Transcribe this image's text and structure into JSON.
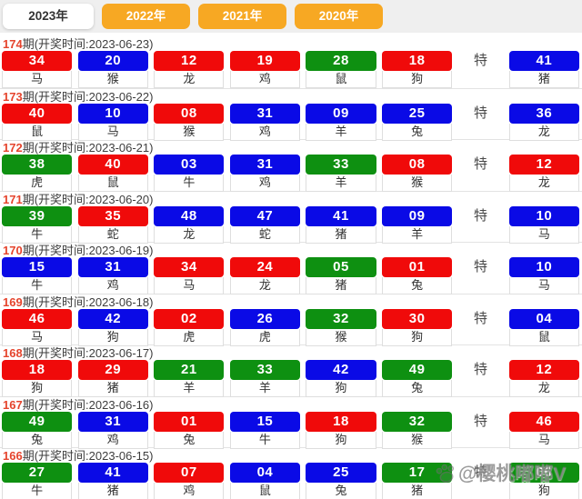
{
  "tabs": [
    {
      "label": "2023年",
      "active": true
    },
    {
      "label": "2022年",
      "active": false
    },
    {
      "label": "2021年",
      "active": false
    },
    {
      "label": "2020年",
      "active": false
    }
  ],
  "special_label": "特",
  "colors": {
    "red": "#f00a0a",
    "blue": "#0a0ae6",
    "green": "#0e9011",
    "tab_orange": "#f7a823",
    "period_red": "#e5442d",
    "header_text": "#3d3d3d",
    "cell_border": "#dedede",
    "tabbar_bg": "#efefef",
    "separator": "#e3e3e3"
  },
  "rows": [
    {
      "period": "174",
      "info": "期(开奖时间:2023-06-23)",
      "balls": [
        {
          "num": "34",
          "color": "red",
          "zodiac": "马"
        },
        {
          "num": "20",
          "color": "blue",
          "zodiac": "猴"
        },
        {
          "num": "12",
          "color": "red",
          "zodiac": "龙"
        },
        {
          "num": "19",
          "color": "red",
          "zodiac": "鸡"
        },
        {
          "num": "28",
          "color": "green",
          "zodiac": "鼠"
        },
        {
          "num": "18",
          "color": "red",
          "zodiac": "狗"
        }
      ],
      "special": {
        "num": "41",
        "color": "blue",
        "zodiac": "猪"
      }
    },
    {
      "period": "173",
      "info": "期(开奖时间:2023-06-22)",
      "balls": [
        {
          "num": "40",
          "color": "red",
          "zodiac": "鼠"
        },
        {
          "num": "10",
          "color": "blue",
          "zodiac": "马"
        },
        {
          "num": "08",
          "color": "red",
          "zodiac": "猴"
        },
        {
          "num": "31",
          "color": "blue",
          "zodiac": "鸡"
        },
        {
          "num": "09",
          "color": "blue",
          "zodiac": "羊"
        },
        {
          "num": "25",
          "color": "blue",
          "zodiac": "兔"
        }
      ],
      "special": {
        "num": "36",
        "color": "blue",
        "zodiac": "龙"
      }
    },
    {
      "period": "172",
      "info": "期(开奖时间:2023-06-21)",
      "balls": [
        {
          "num": "38",
          "color": "green",
          "zodiac": "虎"
        },
        {
          "num": "40",
          "color": "red",
          "zodiac": "鼠"
        },
        {
          "num": "03",
          "color": "blue",
          "zodiac": "牛"
        },
        {
          "num": "31",
          "color": "blue",
          "zodiac": "鸡"
        },
        {
          "num": "33",
          "color": "green",
          "zodiac": "羊"
        },
        {
          "num": "08",
          "color": "red",
          "zodiac": "猴"
        }
      ],
      "special": {
        "num": "12",
        "color": "red",
        "zodiac": "龙"
      }
    },
    {
      "period": "171",
      "info": "期(开奖时间:2023-06-20)",
      "balls": [
        {
          "num": "39",
          "color": "green",
          "zodiac": "牛"
        },
        {
          "num": "35",
          "color": "red",
          "zodiac": "蛇"
        },
        {
          "num": "48",
          "color": "blue",
          "zodiac": "龙"
        },
        {
          "num": "47",
          "color": "blue",
          "zodiac": "蛇"
        },
        {
          "num": "41",
          "color": "blue",
          "zodiac": "猪"
        },
        {
          "num": "09",
          "color": "blue",
          "zodiac": "羊"
        }
      ],
      "special": {
        "num": "10",
        "color": "blue",
        "zodiac": "马"
      }
    },
    {
      "period": "170",
      "info": "期(开奖时间:2023-06-19)",
      "balls": [
        {
          "num": "15",
          "color": "blue",
          "zodiac": "牛"
        },
        {
          "num": "31",
          "color": "blue",
          "zodiac": "鸡"
        },
        {
          "num": "34",
          "color": "red",
          "zodiac": "马"
        },
        {
          "num": "24",
          "color": "red",
          "zodiac": "龙"
        },
        {
          "num": "05",
          "color": "green",
          "zodiac": "猪"
        },
        {
          "num": "01",
          "color": "red",
          "zodiac": "兔"
        }
      ],
      "special": {
        "num": "10",
        "color": "blue",
        "zodiac": "马"
      }
    },
    {
      "period": "169",
      "info": "期(开奖时间:2023-06-18)",
      "balls": [
        {
          "num": "46",
          "color": "red",
          "zodiac": "马"
        },
        {
          "num": "42",
          "color": "blue",
          "zodiac": "狗"
        },
        {
          "num": "02",
          "color": "red",
          "zodiac": "虎"
        },
        {
          "num": "26",
          "color": "blue",
          "zodiac": "虎"
        },
        {
          "num": "32",
          "color": "green",
          "zodiac": "猴"
        },
        {
          "num": "30",
          "color": "red",
          "zodiac": "狗"
        }
      ],
      "special": {
        "num": "04",
        "color": "blue",
        "zodiac": "鼠"
      }
    },
    {
      "period": "168",
      "info": "期(开奖时间:2023-06-17)",
      "balls": [
        {
          "num": "18",
          "color": "red",
          "zodiac": "狗"
        },
        {
          "num": "29",
          "color": "red",
          "zodiac": "猪"
        },
        {
          "num": "21",
          "color": "green",
          "zodiac": "羊"
        },
        {
          "num": "33",
          "color": "green",
          "zodiac": "羊"
        },
        {
          "num": "42",
          "color": "blue",
          "zodiac": "狗"
        },
        {
          "num": "49",
          "color": "green",
          "zodiac": "兔"
        }
      ],
      "special": {
        "num": "12",
        "color": "red",
        "zodiac": "龙"
      }
    },
    {
      "period": "167",
      "info": "期(开奖时间:2023-06-16)",
      "balls": [
        {
          "num": "49",
          "color": "green",
          "zodiac": "兔"
        },
        {
          "num": "31",
          "color": "blue",
          "zodiac": "鸡"
        },
        {
          "num": "01",
          "color": "red",
          "zodiac": "兔"
        },
        {
          "num": "15",
          "color": "blue",
          "zodiac": "牛"
        },
        {
          "num": "18",
          "color": "red",
          "zodiac": "狗"
        },
        {
          "num": "32",
          "color": "green",
          "zodiac": "猴"
        }
      ],
      "special": {
        "num": "46",
        "color": "red",
        "zodiac": "马"
      }
    },
    {
      "period": "166",
      "info": "期(开奖时间:2023-06-15)",
      "balls": [
        {
          "num": "27",
          "color": "green",
          "zodiac": "牛"
        },
        {
          "num": "41",
          "color": "blue",
          "zodiac": "猪"
        },
        {
          "num": "07",
          "color": "red",
          "zodiac": "鸡"
        },
        {
          "num": "04",
          "color": "blue",
          "zodiac": "鼠"
        },
        {
          "num": "25",
          "color": "blue",
          "zodiac": "兔"
        },
        {
          "num": "17",
          "color": "green",
          "zodiac": "猪"
        }
      ],
      "special": {
        "num": "06",
        "color": "green",
        "zodiac": "狗"
      }
    }
  ],
  "watermark": {
    "icon": "paw-icon",
    "text": "@樱桃嘟嘟V"
  }
}
